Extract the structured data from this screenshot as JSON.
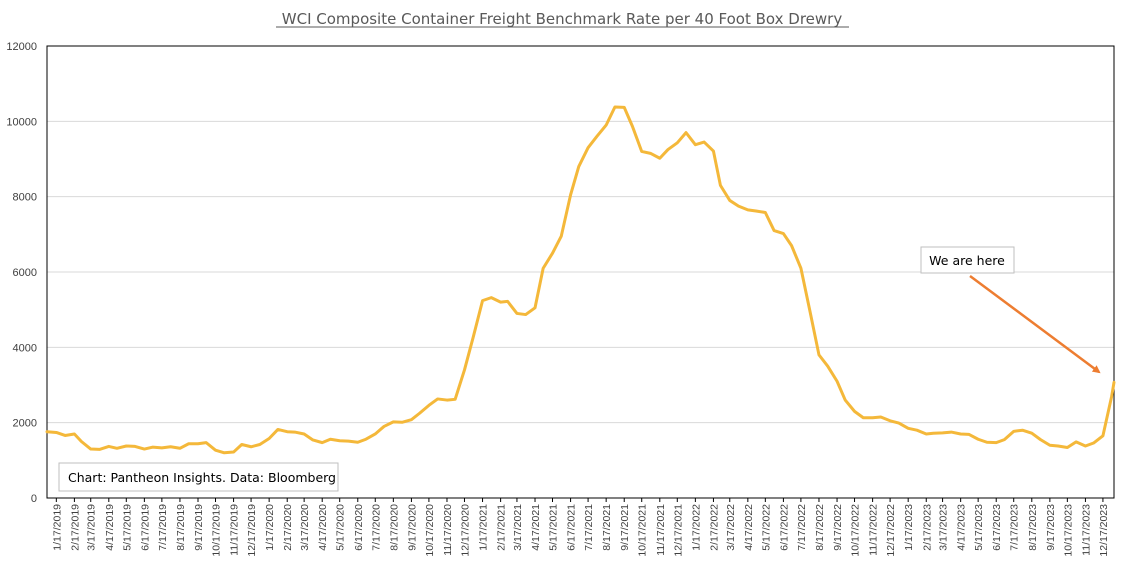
{
  "chart_data": {
    "type": "line",
    "title": "WCI Composite Container Freight Benchmark Rate per 40 Foot Box Drewry",
    "xlabel": "",
    "ylabel": "",
    "ylim": [
      0,
      12000
    ],
    "yticks": [
      0,
      2000,
      4000,
      6000,
      8000,
      10000,
      12000
    ],
    "x_tick_labels": [
      "1/17/2019",
      "2/17/2019",
      "3/17/2019",
      "4/17/2019",
      "5/17/2019",
      "6/17/2019",
      "7/17/2019",
      "8/17/2019",
      "9/17/2019",
      "10/17/2019",
      "11/17/2019",
      "12/17/2019",
      "1/17/2020",
      "2/17/2020",
      "3/17/2020",
      "4/17/2020",
      "5/17/2020",
      "6/17/2020",
      "7/17/2020",
      "8/17/2020",
      "9/17/2020",
      "10/17/2020",
      "11/17/2020",
      "12/17/2020",
      "1/17/2021",
      "2/17/2021",
      "3/17/2021",
      "4/17/2021",
      "5/17/2021",
      "6/17/2021",
      "7/17/2021",
      "8/17/2021",
      "9/17/2021",
      "10/17/2021",
      "11/17/2021",
      "12/17/2021",
      "1/17/2022",
      "2/17/2022",
      "3/17/2022",
      "4/17/2022",
      "5/17/2022",
      "6/17/2022",
      "7/17/2022",
      "8/17/2022",
      "9/17/2022",
      "10/17/2022",
      "11/17/2022",
      "12/17/2022",
      "1/17/2023",
      "2/17/2023",
      "3/17/2023",
      "4/17/2023",
      "5/17/2023",
      "6/17/2023",
      "7/17/2023",
      "8/17/2023",
      "9/17/2023",
      "10/17/2023",
      "11/17/2023",
      "12/17/2023"
    ],
    "grid": true,
    "series": [
      {
        "color": "#f4b83a",
        "points": [
          [
            "1/1/2019",
            1760
          ],
          [
            "1/17/2019",
            1740
          ],
          [
            "2/1/2019",
            1660
          ],
          [
            "2/17/2019",
            1700
          ],
          [
            "3/1/2019",
            1500
          ],
          [
            "3/17/2019",
            1300
          ],
          [
            "4/1/2019",
            1290
          ],
          [
            "4/17/2019",
            1370
          ],
          [
            "5/1/2019",
            1320
          ],
          [
            "5/17/2019",
            1380
          ],
          [
            "6/1/2019",
            1370
          ],
          [
            "6/17/2019",
            1300
          ],
          [
            "7/1/2019",
            1350
          ],
          [
            "7/17/2019",
            1330
          ],
          [
            "8/1/2019",
            1360
          ],
          [
            "8/17/2019",
            1320
          ],
          [
            "9/1/2019",
            1440
          ],
          [
            "9/17/2019",
            1440
          ],
          [
            "10/1/2019",
            1470
          ],
          [
            "10/17/2019",
            1270
          ],
          [
            "11/1/2019",
            1200
          ],
          [
            "11/17/2019",
            1220
          ],
          [
            "12/1/2019",
            1420
          ],
          [
            "12/17/2019",
            1360
          ],
          [
            "1/1/2020",
            1420
          ],
          [
            "1/17/2020",
            1580
          ],
          [
            "2/1/2020",
            1820
          ],
          [
            "2/17/2020",
            1760
          ],
          [
            "3/1/2020",
            1750
          ],
          [
            "3/17/2020",
            1700
          ],
          [
            "4/1/2020",
            1540
          ],
          [
            "4/17/2020",
            1470
          ],
          [
            "5/1/2020",
            1560
          ],
          [
            "5/17/2020",
            1520
          ],
          [
            "6/1/2020",
            1510
          ],
          [
            "6/17/2020",
            1480
          ],
          [
            "7/1/2020",
            1560
          ],
          [
            "7/17/2020",
            1700
          ],
          [
            "8/1/2020",
            1900
          ],
          [
            "8/17/2020",
            2020
          ],
          [
            "9/1/2020",
            2010
          ],
          [
            "9/17/2020",
            2080
          ],
          [
            "10/1/2020",
            2250
          ],
          [
            "10/17/2020",
            2460
          ],
          [
            "11/1/2020",
            2630
          ],
          [
            "11/17/2020",
            2600
          ],
          [
            "12/1/2020",
            2620
          ],
          [
            "12/17/2020",
            3400
          ],
          [
            "1/1/2021",
            4270
          ],
          [
            "1/17/2021",
            5240
          ],
          [
            "2/1/2021",
            5320
          ],
          [
            "2/17/2021",
            5200
          ],
          [
            "3/1/2021",
            5220
          ],
          [
            "3/17/2021",
            4900
          ],
          [
            "4/1/2021",
            4870
          ],
          [
            "4/17/2021",
            5050
          ],
          [
            "5/1/2021",
            6100
          ],
          [
            "5/17/2021",
            6500
          ],
          [
            "6/1/2021",
            6950
          ],
          [
            "6/17/2021",
            8050
          ],
          [
            "7/1/2021",
            8800
          ],
          [
            "7/17/2021",
            9300
          ],
          [
            "8/1/2021",
            9600
          ],
          [
            "8/17/2021",
            9900
          ],
          [
            "9/1/2021",
            10380
          ],
          [
            "9/17/2021",
            10370
          ],
          [
            "10/1/2021",
            9870
          ],
          [
            "10/17/2021",
            9200
          ],
          [
            "11/1/2021",
            9150
          ],
          [
            "11/17/2021",
            9020
          ],
          [
            "12/1/2021",
            9250
          ],
          [
            "12/17/2021",
            9430
          ],
          [
            "1/1/2022",
            9700
          ],
          [
            "1/17/2022",
            9380
          ],
          [
            "2/1/2022",
            9450
          ],
          [
            "2/17/2022",
            9210
          ],
          [
            "3/1/2022",
            8300
          ],
          [
            "3/17/2022",
            7900
          ],
          [
            "4/1/2022",
            7750
          ],
          [
            "4/17/2022",
            7650
          ],
          [
            "5/1/2022",
            7620
          ],
          [
            "5/17/2022",
            7580
          ],
          [
            "6/1/2022",
            7100
          ],
          [
            "6/17/2022",
            7020
          ],
          [
            "7/1/2022",
            6700
          ],
          [
            "7/17/2022",
            6100
          ],
          [
            "8/1/2022",
            5000
          ],
          [
            "8/17/2022",
            3800
          ],
          [
            "9/1/2022",
            3500
          ],
          [
            "9/17/2022",
            3100
          ],
          [
            "10/1/2022",
            2600
          ],
          [
            "10/17/2022",
            2300
          ],
          [
            "11/1/2022",
            2130
          ],
          [
            "11/17/2022",
            2130
          ],
          [
            "12/1/2022",
            2150
          ],
          [
            "12/17/2022",
            2050
          ],
          [
            "1/1/2023",
            1990
          ],
          [
            "1/17/2023",
            1850
          ],
          [
            "2/1/2023",
            1800
          ],
          [
            "2/17/2023",
            1700
          ],
          [
            "3/1/2023",
            1720
          ],
          [
            "3/17/2023",
            1730
          ],
          [
            "4/1/2023",
            1750
          ],
          [
            "4/17/2023",
            1700
          ],
          [
            "5/1/2023",
            1690
          ],
          [
            "5/17/2023",
            1560
          ],
          [
            "6/1/2023",
            1480
          ],
          [
            "6/17/2023",
            1470
          ],
          [
            "7/1/2023",
            1550
          ],
          [
            "7/17/2023",
            1770
          ],
          [
            "8/1/2023",
            1800
          ],
          [
            "8/17/2023",
            1720
          ],
          [
            "9/1/2023",
            1550
          ],
          [
            "9/17/2023",
            1400
          ],
          [
            "10/1/2023",
            1380
          ],
          [
            "10/17/2023",
            1340
          ],
          [
            "11/1/2023",
            1490
          ],
          [
            "11/17/2023",
            1380
          ],
          [
            "12/1/2023",
            1460
          ],
          [
            "12/17/2023",
            1650
          ],
          [
            "1/1/2024",
            2700
          ],
          [
            "1/5/2024",
            3070
          ]
        ]
      }
    ],
    "annotations": [
      {
        "text": "We are here",
        "arrow_color": "#ed7d31"
      },
      {
        "text": "Chart: Pantheon Insights. Data: Bloomberg"
      }
    ]
  }
}
